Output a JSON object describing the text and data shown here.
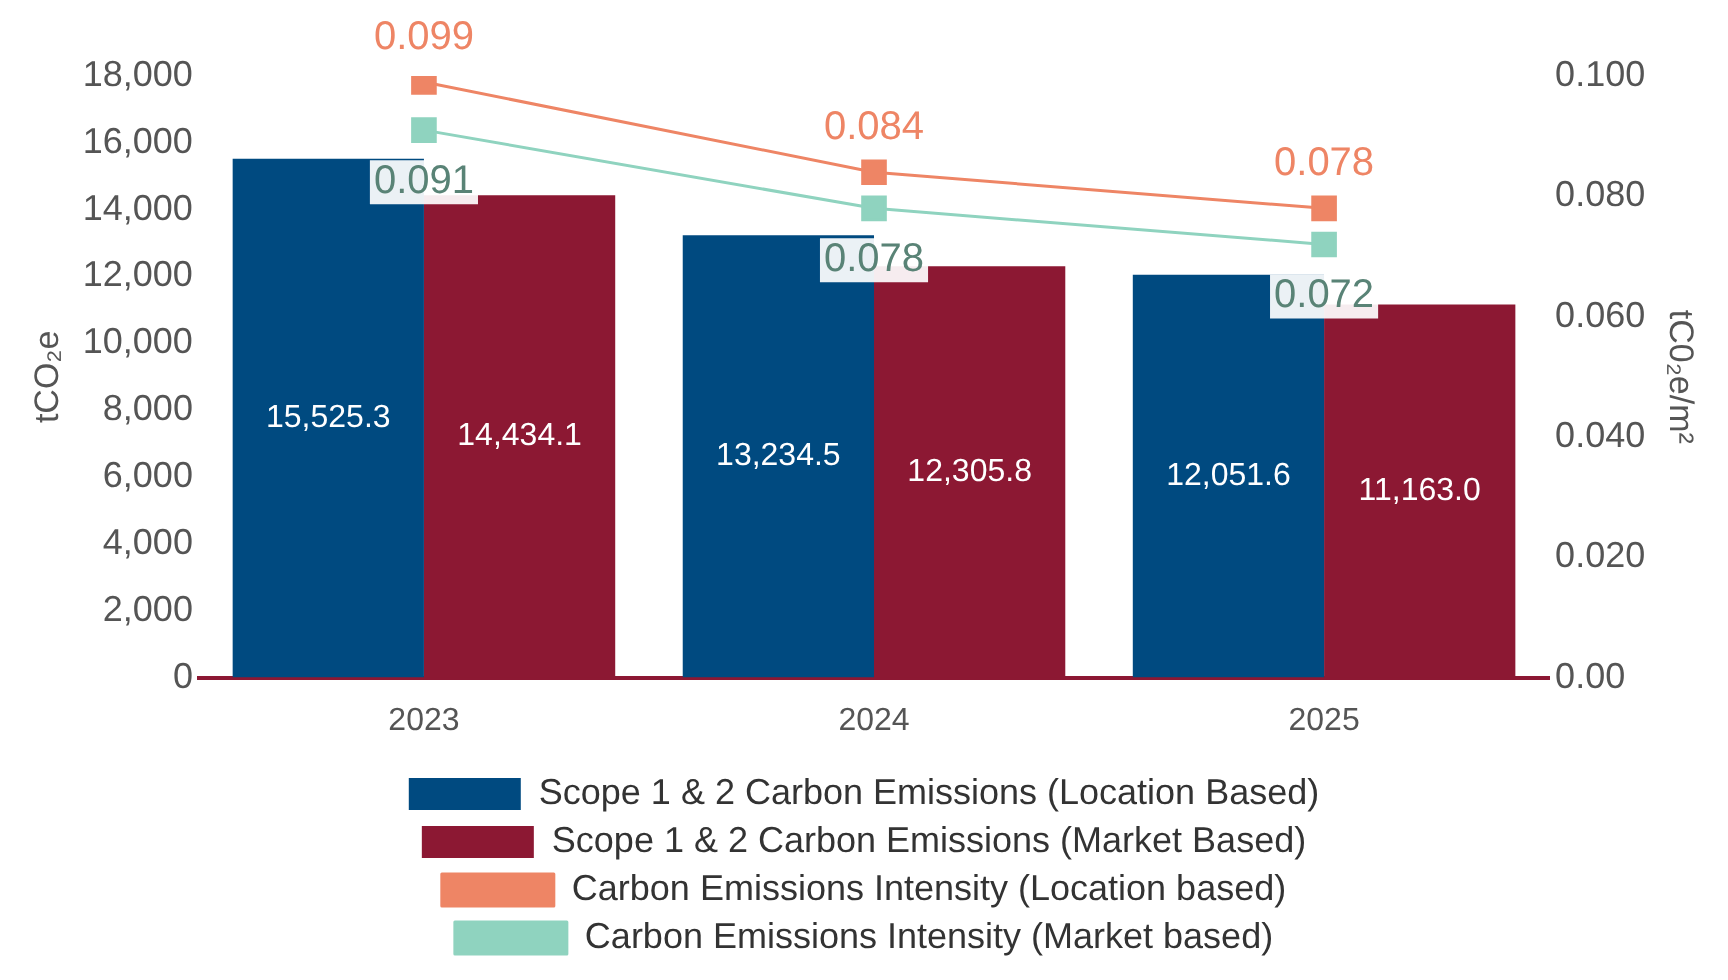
{
  "chart_data": {
    "type": "bar",
    "categories": [
      "2023",
      "2024",
      "2025"
    ],
    "ylabel": "tCO₂e",
    "y2label": "tC0₂e/m²",
    "ylim": [
      0,
      18000
    ],
    "yticks": [
      {
        "value": 0,
        "label": "0"
      },
      {
        "value": 2000,
        "label": "2,000"
      },
      {
        "value": 4000,
        "label": "4,000"
      },
      {
        "value": 6000,
        "label": "6,000"
      },
      {
        "value": 8000,
        "label": "8,000"
      },
      {
        "value": 10000,
        "label": "10,000"
      },
      {
        "value": 12000,
        "label": "12,000"
      },
      {
        "value": 14000,
        "label": "14,000"
      },
      {
        "value": 16000,
        "label": "16,000"
      },
      {
        "value": 18000,
        "label": "18,000"
      }
    ],
    "y2lim": [
      0,
      0.1
    ],
    "y2ticks": [
      {
        "value": 0,
        "label": "0.00"
      },
      {
        "value": 0.02,
        "label": "0.020"
      },
      {
        "value": 0.04,
        "label": "0.040"
      },
      {
        "value": 0.06,
        "label": "0.060"
      },
      {
        "value": 0.08,
        "label": "0.080"
      },
      {
        "value": 0.1,
        "label": "0.100"
      }
    ],
    "legend": "bottom",
    "series": [
      {
        "name": "Scope 1 & 2 Carbon Emissions (Location Based)",
        "color": "#004a80",
        "values": [
          15525.3,
          13234.5,
          12051.6
        ],
        "value_labels": [
          "15,525.3",
          "13,234.5",
          "12,051.6"
        ]
      },
      {
        "name": "Scope 1 & 2 Carbon Emissions (Market Based)",
        "color": "#8c1833",
        "values": [
          14434.1,
          12305.8,
          11163.0
        ],
        "value_labels": [
          "14,434.1",
          "12,305.8",
          "11,163.0"
        ]
      },
      {
        "name": "Carbon Emissions Intensity (Location based)",
        "type": "line",
        "axis": "y2",
        "marker": "square",
        "color": "#ee8565",
        "values": [
          0.099,
          0.084,
          0.078
        ],
        "value_labels": [
          "0.099",
          "0.084",
          "0.078"
        ]
      },
      {
        "name": "Carbon Emissions Intensity (Market based)",
        "type": "line",
        "axis": "y2",
        "marker": "square",
        "color": "#8fd3bf",
        "values": [
          0.091,
          0.078,
          0.072
        ],
        "value_labels": [
          "0.091",
          "0.078",
          "0.072"
        ]
      }
    ]
  }
}
